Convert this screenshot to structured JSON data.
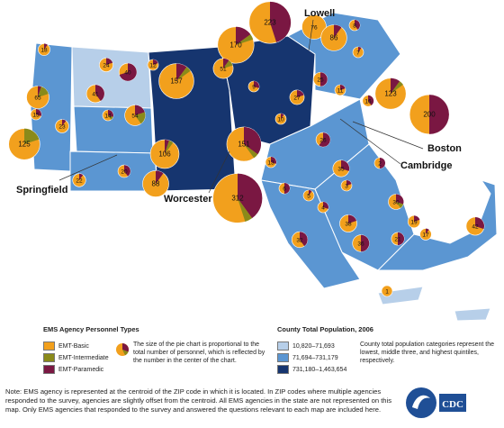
{
  "cities": {
    "lowell": "Lowell",
    "boston": "Boston",
    "cambridge": "Cambridge",
    "worcester": "Worcester",
    "springfield": "Springfield"
  },
  "colors": {
    "emt_basic": "#f2a01d",
    "emt_intermediate": "#8a8a1a",
    "emt_paramedic": "#7a1742",
    "pop_low": "#b7cfe9",
    "pop_mid": "#5b96d2",
    "pop_high": "#16356f",
    "ocean": "#ffffff"
  },
  "legend": {
    "types_title": "EMS Agency Personnel Types",
    "basic": "EMT-Basic",
    "intermediate": "EMT-Intermediate",
    "paramedic": "EMT-Paramedic",
    "pie_note": "The size of the pie chart is proportional to the total number of personnel, which is reflected by the number in the center of the chart.",
    "pop_title": "County Total Population, 2006",
    "pop_low": "10,820–71,693",
    "pop_mid": "71,694–731,179",
    "pop_high": "731,180–1,463,654",
    "pop_note": "County total population categories represent the lowest, middle three, and highest quintiles, respectively."
  },
  "note": "Note: EMS agency is represented at the centroid of the ZIP code in which it is located. In ZIP codes where multiple agencies responded to the survey, agencies are slightly offset from the centroid. All EMS agencies in the state are not represented on this map. Only EMS agencies that responded to the survey and answered the questions relevant to each map are included here.",
  "logo_text": "CDC",
  "agencies": [
    {
      "n": 223,
      "b": 0.55,
      "i": 0.0
    },
    {
      "n": 170,
      "b": 0.8,
      "i": 0.05
    },
    {
      "n": 157,
      "b": 0.85,
      "i": 0.05
    },
    {
      "n": 151,
      "b": 0.6,
      "i": 0.05
    },
    {
      "n": 312,
      "b": 0.55,
      "i": 0.05
    },
    {
      "n": 200,
      "b": 0.5,
      "i": 0.0
    },
    {
      "n": 123,
      "b": 0.85,
      "i": 0.05
    },
    {
      "n": 106,
      "b": 0.9,
      "i": 0.05
    },
    {
      "n": 88,
      "b": 0.9,
      "i": 0.0
    },
    {
      "n": 76,
      "b": 1.0,
      "i": 0.0
    },
    {
      "n": 86,
      "b": 0.9,
      "i": 0.0
    },
    {
      "n": 65,
      "b": 0.8,
      "i": 0.15
    },
    {
      "n": 125,
      "b": 0.8,
      "i": 0.2
    },
    {
      "n": 54,
      "b": 0.6,
      "i": 0.2
    },
    {
      "n": 40,
      "b": 0.3,
      "i": 0.0
    },
    {
      "n": 41,
      "b": 0.6,
      "i": 0.0
    },
    {
      "n": 51,
      "b": 0.8,
      "i": 0.1
    },
    {
      "n": 25,
      "b": 0.5,
      "i": 0.0
    },
    {
      "n": 24,
      "b": 0.8,
      "i": 0.0
    },
    {
      "n": 27,
      "b": 0.8,
      "i": 0.0
    },
    {
      "n": 23,
      "b": 0.9,
      "i": 0.0
    },
    {
      "n": 22,
      "b": 0.9,
      "i": 0.0
    },
    {
      "n": 20,
      "b": 0.6,
      "i": 0.0
    },
    {
      "n": 18,
      "b": 0.9,
      "i": 0.0
    },
    {
      "n": 15,
      "b": 0.7,
      "i": 0.0
    },
    {
      "n": 14,
      "b": 0.6,
      "i": 0.1
    },
    {
      "n": 12,
      "b": 0.8,
      "i": 0.0
    },
    {
      "n": 10,
      "b": 0.9,
      "i": 0.0
    },
    {
      "n": 9,
      "b": 0.7,
      "i": 0.0
    },
    {
      "n": 8,
      "b": 0.6,
      "i": 0.0
    },
    {
      "n": 7,
      "b": 0.9,
      "i": 0.0
    },
    {
      "n": 32,
      "b": 0.6,
      "i": 0.0
    },
    {
      "n": 36,
      "b": 0.5,
      "i": 0.0
    },
    {
      "n": 38,
      "b": 0.8,
      "i": 0.0
    },
    {
      "n": 35,
      "b": 0.7,
      "i": 0.0
    },
    {
      "n": 30,
      "b": 0.6,
      "i": 0.1
    },
    {
      "n": 42,
      "b": 0.7,
      "i": 0.0
    },
    {
      "n": 26,
      "b": 0.4,
      "i": 0.0
    },
    {
      "n": 21,
      "b": 0.5,
      "i": 0.0
    },
    {
      "n": 19,
      "b": 0.8,
      "i": 0.0
    },
    {
      "n": 17,
      "b": 0.9,
      "i": 0.0
    },
    {
      "n": 16,
      "b": 0.6,
      "i": 0.0
    },
    {
      "n": 13,
      "b": 0.7,
      "i": 0.0
    },
    {
      "n": 11,
      "b": 0.8,
      "i": 0.0
    },
    {
      "n": 6,
      "b": 0.5,
      "i": 0.0
    },
    {
      "n": 5,
      "b": 0.9,
      "i": 0.0
    },
    {
      "n": 4,
      "b": 0.7,
      "i": 0.0
    },
    {
      "n": 3,
      "b": 0.8,
      "i": 0.0
    },
    {
      "n": 2,
      "b": 0.5,
      "i": 0.0
    },
    {
      "n": 1,
      "b": 1.0,
      "i": 0.0
    }
  ]
}
